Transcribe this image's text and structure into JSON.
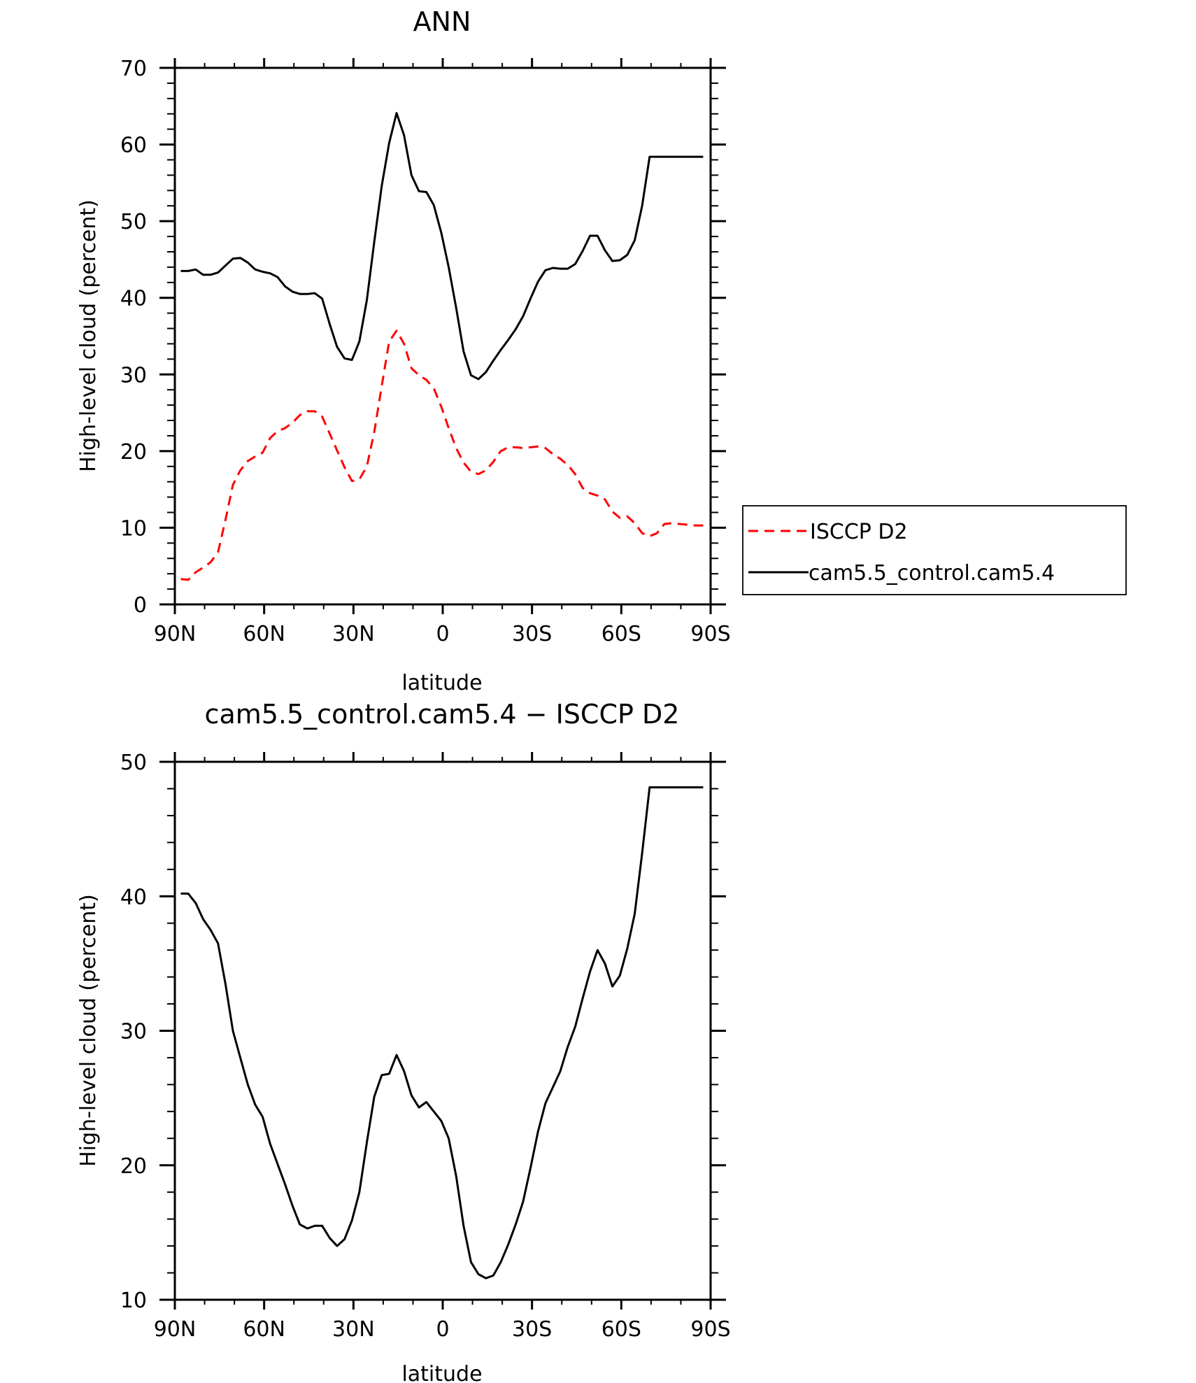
{
  "chart_data": [
    {
      "type": "line",
      "title": "ANN",
      "xlabel": "latitude",
      "ylabel": "High-level cloud (percent)",
      "xlim": [
        -90,
        90
      ],
      "ylim": [
        0,
        70
      ],
      "xticks": [
        -90,
        -60,
        -30,
        0,
        30,
        60,
        90
      ],
      "xtick_labels": [
        "90N",
        "60N",
        "30N",
        "0",
        "30S",
        "60S",
        "90S"
      ],
      "yticks": [
        0,
        10,
        20,
        30,
        40,
        50,
        60,
        70
      ],
      "ytick_labels": [
        "0",
        "10",
        "20",
        "30",
        "40",
        "50",
        "60",
        "70"
      ],
      "legend_position": "right",
      "series": [
        {
          "name": "ISCCP D2",
          "color": "#ff0000",
          "dash": "dashed",
          "x": [
            -88,
            -85.5,
            -83,
            -80.5,
            -78,
            -75.5,
            -73,
            -70.5,
            -68,
            -65.5,
            -63,
            -60.5,
            -58,
            -55.5,
            -53,
            -50.5,
            -48,
            -45.5,
            -43,
            -40.5,
            -38,
            -35.5,
            -33,
            -30.5,
            -28,
            -25.5,
            -23,
            -20.5,
            -18,
            -15.5,
            -13,
            -10.5,
            -8,
            -5.5,
            -3,
            -0.5,
            2,
            4.5,
            7,
            9.5,
            12,
            14.5,
            17,
            19.5,
            22,
            24.5,
            27,
            29.5,
            32,
            34.5,
            37,
            39.5,
            42,
            44.5,
            47,
            49.5,
            52,
            54.5,
            57,
            59.5,
            62,
            64.5,
            67,
            69.5,
            72,
            74.5,
            77,
            79.5,
            82,
            84.5,
            87.5
          ],
          "y": [
            3.3,
            3.2,
            4.2,
            4.8,
            5.5,
            6.8,
            11.0,
            15.6,
            17.5,
            18.7,
            19.3,
            19.8,
            21.7,
            22.6,
            23.0,
            23.7,
            24.7,
            25.2,
            25.2,
            24.5,
            22.3,
            20.1,
            17.9,
            16.1,
            16.3,
            18.0,
            22.5,
            28.5,
            34.3,
            35.7,
            34.0,
            30.8,
            29.9,
            29.3,
            28.2,
            25.8,
            23.0,
            20.4,
            18.5,
            17.3,
            17.0,
            17.5,
            18.6,
            20.0,
            20.5,
            20.5,
            20.4,
            20.5,
            20.6,
            20.4,
            19.6,
            19.0,
            18.2,
            17.0,
            15.2,
            14.5,
            14.2,
            13.7,
            12.1,
            11.3,
            11.5,
            10.6,
            9.3,
            8.9,
            9.3,
            10.5,
            10.6,
            10.5,
            10.4,
            10.3,
            10.3
          ]
        },
        {
          "name": "cam5.5_control.cam5.4",
          "color": "#000000",
          "dash": "solid",
          "x": [
            -88,
            -85.5,
            -83,
            -80.5,
            -78,
            -75.5,
            -73,
            -70.5,
            -68,
            -65.5,
            -63,
            -60.5,
            -58,
            -55.5,
            -53,
            -50.5,
            -48,
            -45.5,
            -43,
            -40.5,
            -38,
            -35.5,
            -33,
            -30.5,
            -28,
            -25.5,
            -23,
            -20.5,
            -18,
            -15.5,
            -13,
            -10.5,
            -8,
            -5.5,
            -3,
            -0.5,
            2,
            4.5,
            7,
            9.5,
            12,
            14.5,
            17,
            19.5,
            22,
            24.5,
            27,
            29.5,
            32,
            34.5,
            37,
            39.5,
            42,
            44.5,
            47,
            49.5,
            52,
            54.5,
            57,
            59.5,
            62,
            64.5,
            67,
            69.5,
            72,
            74.5,
            77,
            79.5,
            82,
            84.5,
            87.5
          ],
          "y": [
            43.5,
            43.5,
            43.7,
            43.0,
            43.0,
            43.3,
            44.2,
            45.1,
            45.2,
            44.6,
            43.7,
            43.4,
            43.2,
            42.7,
            41.5,
            40.8,
            40.5,
            40.5,
            40.6,
            39.9,
            36.6,
            33.6,
            32.1,
            31.9,
            34.3,
            39.7,
            47.3,
            54.6,
            60.2,
            64.1,
            61.2,
            56.0,
            53.9,
            53.8,
            52.1,
            48.5,
            44.0,
            38.7,
            33.0,
            29.9,
            29.4,
            30.3,
            31.8,
            33.2,
            34.5,
            35.9,
            37.6,
            39.9,
            42.1,
            43.6,
            43.9,
            43.8,
            43.8,
            44.4,
            46.1,
            48.1,
            48.1,
            46.2,
            44.8,
            44.9,
            45.6,
            47.5,
            52.0,
            58.4,
            58.4,
            58.4,
            58.4,
            58.4,
            58.4,
            58.4,
            58.4
          ]
        }
      ]
    },
    {
      "type": "line",
      "title": "cam5.5_control.cam5.4 − ISCCP D2",
      "xlabel": "latitude",
      "ylabel": "High-level cloud (percent)",
      "xlim": [
        -90,
        90
      ],
      "ylim": [
        10,
        50
      ],
      "xticks": [
        -90,
        -60,
        -30,
        0,
        30,
        60,
        90
      ],
      "xtick_labels": [
        "90N",
        "60N",
        "30N",
        "0",
        "30S",
        "60S",
        "90S"
      ],
      "yticks": [
        10,
        20,
        30,
        40,
        50
      ],
      "ytick_labels": [
        "10",
        "20",
        "30",
        "40",
        "50"
      ],
      "series": [
        {
          "color": "#000000",
          "dash": "solid",
          "x": [
            -88,
            -85.5,
            -83,
            -80.5,
            -78,
            -75.5,
            -73,
            -70.5,
            -68,
            -65.5,
            -63,
            -60.5,
            -58,
            -55.5,
            -53,
            -50.5,
            -48,
            -45.5,
            -43,
            -40.5,
            -38,
            -35.5,
            -33,
            -30.5,
            -28,
            -25.5,
            -23,
            -20.5,
            -18,
            -15.5,
            -13,
            -10.5,
            -8,
            -5.5,
            -3,
            -0.5,
            2,
            4.5,
            7,
            9.5,
            12,
            14.5,
            17,
            19.5,
            22,
            24.5,
            27,
            29.5,
            32,
            34.5,
            37,
            39.5,
            42,
            44.5,
            47,
            49.5,
            52,
            54.5,
            57,
            59.5,
            62,
            64.5,
            67,
            69.5,
            72,
            74.5,
            77,
            79.5,
            82,
            84.5,
            87.5
          ],
          "y": [
            40.2,
            40.2,
            39.5,
            38.3,
            37.5,
            36.5,
            33.5,
            30.0,
            28.0,
            26.0,
            24.5,
            23.6,
            21.6,
            20.1,
            18.6,
            17.0,
            15.6,
            15.3,
            15.5,
            15.5,
            14.6,
            14.0,
            14.5,
            15.9,
            18.0,
            21.7,
            25.1,
            26.7,
            26.8,
            28.2,
            27.0,
            25.2,
            24.3,
            24.7,
            24.0,
            23.3,
            22.0,
            19.2,
            15.5,
            12.8,
            11.9,
            11.6,
            11.8,
            12.8,
            14.1,
            15.6,
            17.3,
            19.8,
            22.5,
            24.6,
            25.8,
            27.0,
            28.8,
            30.3,
            32.4,
            34.4,
            36.0,
            35.0,
            33.3,
            34.1,
            36.1,
            38.7,
            43.2,
            48.1,
            48.1,
            48.1,
            48.1,
            48.1,
            48.1,
            48.1,
            48.1
          ]
        }
      ]
    }
  ]
}
